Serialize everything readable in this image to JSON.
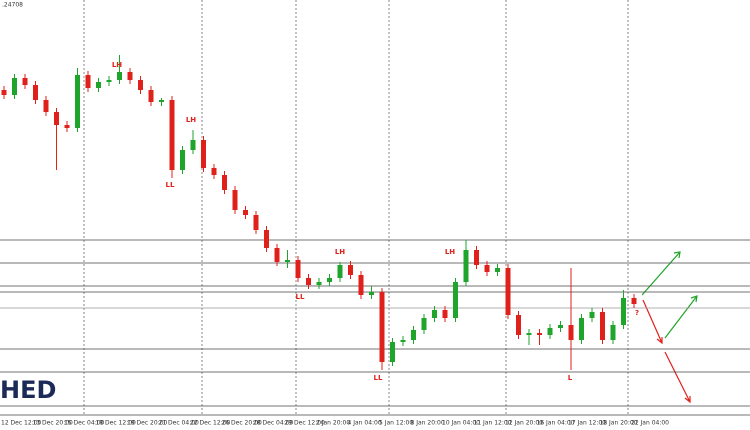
{
  "chart_data": {
    "type": "candlestick",
    "price_label": ".24708",
    "logo": "HED",
    "categories": [
      "12 Dec 12:00",
      null,
      null,
      "13 Dec 20:00",
      null,
      null,
      "15 Dec 04:00",
      null,
      null,
      "18 Dec 12:00",
      null,
      null,
      "19 Dec 20:00",
      null,
      null,
      "21 Dec 04:00",
      null,
      null,
      "22 Dec 12:00",
      null,
      null,
      "26 Dec 20:00",
      null,
      null,
      "28 Dec 04:00",
      null,
      null,
      "29 Dec 12:00",
      null,
      null,
      "2 Jan 20:00",
      null,
      null,
      "4 Jan 04:00",
      null,
      null,
      "5 Jan 12:00",
      null,
      null,
      "8 Jan 20:00",
      null,
      null,
      "10 Jan 04:00",
      null,
      null,
      "11 Jan 12:00",
      null,
      null,
      "12 Jan 20:00",
      null,
      null,
      "16 Jan 04:00",
      null,
      null,
      "17 Jan 12:00",
      null,
      null,
      "18 Jan 20:00",
      null,
      null,
      "22 Jan 04:00"
    ],
    "open": [
      340,
      335,
      352,
      345,
      330,
      318,
      305,
      302,
      355,
      342,
      348,
      350,
      358,
      350,
      340,
      328,
      330,
      260,
      280,
      290,
      262,
      255,
      240,
      220,
      215,
      200,
      182,
      168,
      170,
      152,
      145,
      148,
      152,
      165,
      155,
      135,
      138,
      68,
      88,
      90,
      100,
      112,
      120,
      112,
      148,
      180,
      165,
      158,
      162,
      115,
      95,
      97,
      95,
      102,
      105,
      90,
      112,
      118,
      90,
      105,
      132
    ],
    "high": [
      344,
      356,
      356,
      349,
      334,
      322,
      309,
      362,
      359,
      352,
      354,
      375,
      362,
      354,
      344,
      332,
      334,
      284,
      300,
      294,
      266,
      259,
      244,
      224,
      219,
      204,
      186,
      180,
      174,
      156,
      152,
      156,
      168,
      169,
      159,
      144,
      142,
      92,
      94,
      104,
      116,
      124,
      124,
      152,
      190,
      184,
      169,
      166,
      166,
      119,
      101,
      101,
      106,
      109,
      162,
      116,
      122,
      122,
      109,
      140,
      136
    ],
    "low": [
      331,
      331,
      341,
      326,
      314,
      260,
      298,
      298,
      338,
      338,
      344,
      346,
      346,
      336,
      324,
      324,
      252,
      256,
      276,
      258,
      251,
      236,
      216,
      211,
      196,
      178,
      164,
      162,
      148,
      141,
      141,
      144,
      148,
      151,
      131,
      131,
      60,
      64,
      84,
      86,
      96,
      108,
      108,
      108,
      144,
      161,
      154,
      154,
      111,
      91,
      85,
      85,
      91,
      98,
      60,
      86,
      108,
      86,
      86,
      101,
      122
    ],
    "close": [
      335,
      352,
      345,
      330,
      318,
      305,
      302,
      355,
      342,
      348,
      350,
      358,
      350,
      340,
      328,
      330,
      260,
      280,
      290,
      262,
      255,
      240,
      220,
      215,
      200,
      182,
      168,
      170,
      152,
      145,
      148,
      152,
      165,
      155,
      135,
      138,
      68,
      88,
      90,
      100,
      112,
      120,
      112,
      148,
      180,
      165,
      158,
      162,
      115,
      95,
      97,
      95,
      102,
      105,
      90,
      112,
      118,
      90,
      105,
      132,
      126
    ],
    "up_color": "#1fa52b",
    "down_color": "#e0201b",
    "levels": [
      190,
      167,
      144,
      138,
      122,
      81,
      58,
      24
    ],
    "ylim": [
      0,
      430
    ],
    "annotations": [
      "LH",
      "LH",
      "LL",
      "LL",
      "LH",
      "LL",
      "LH",
      "L",
      "?"
    ]
  }
}
